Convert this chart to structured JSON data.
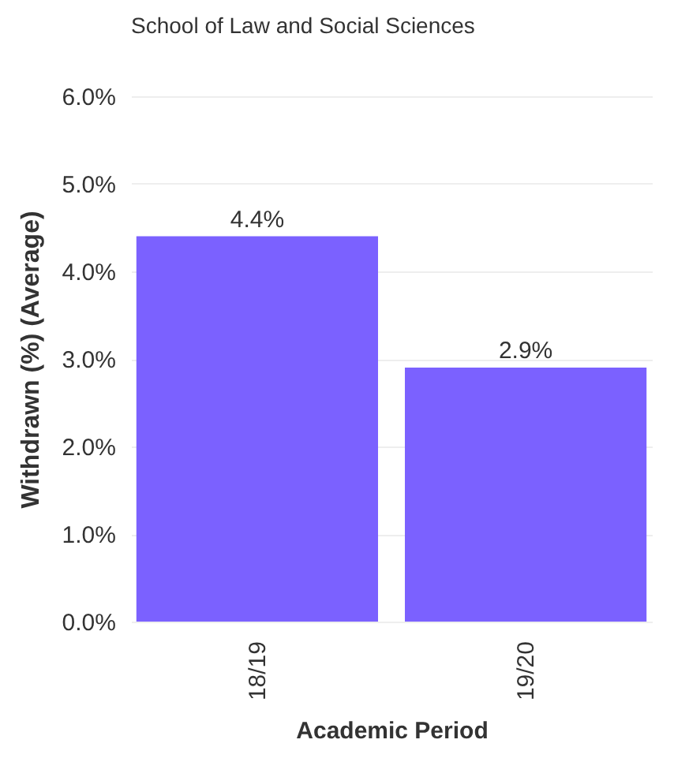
{
  "chart_data": {
    "type": "bar",
    "title": "School of Law and Social Sciences",
    "xlabel": "Academic Period",
    "ylabel": "Withdrawn (%) (Average)",
    "categories": [
      "18/19",
      "19/20"
    ],
    "values": [
      4.4,
      2.9
    ],
    "value_labels": [
      "4.4%",
      "2.9%"
    ],
    "color": "#7b61ff",
    "ylim": [
      0,
      6
    ],
    "yticks": [
      {
        "value": 0,
        "label": "0.0%"
      },
      {
        "value": 1,
        "label": "1.0%"
      },
      {
        "value": 2,
        "label": "2.0%"
      },
      {
        "value": 3,
        "label": "3.0%"
      },
      {
        "value": 4,
        "label": "4.0%"
      },
      {
        "value": 5,
        "label": "5.0%"
      },
      {
        "value": 6,
        "label": "6.0%"
      }
    ],
    "grid": "y"
  }
}
